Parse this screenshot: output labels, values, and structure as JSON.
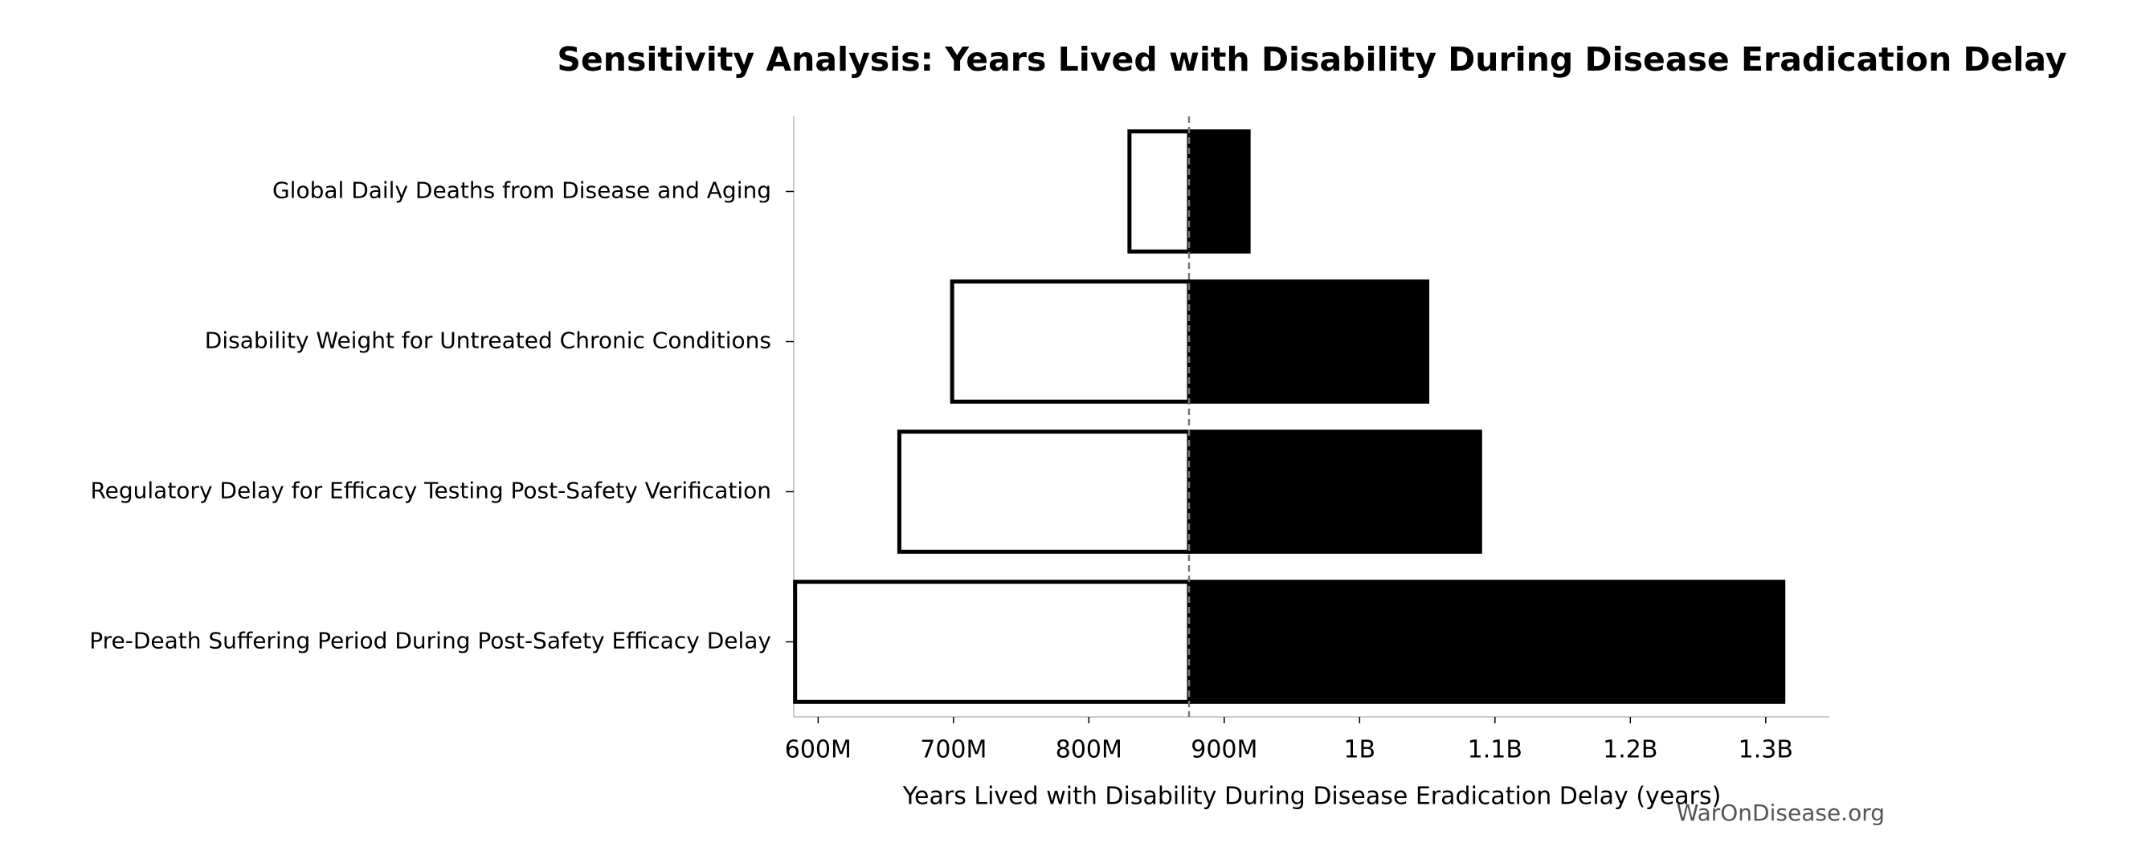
{
  "chart_data": {
    "type": "tornado",
    "title": "Sensitivity Analysis: Years Lived with Disability During Disease Eradication Delay",
    "x_label": "Years Lived with Disability During Disease Eradication Delay (years)",
    "watermark": "WarOnDisease.org",
    "categories": [
      "Global Daily Deaths from Disease and Aging",
      "Disability Weight for Untreated Chronic Conditions",
      "Regulatory Delay for Efficacy Testing Post-Safety Verification",
      "Pre-Death Suffering Period During Post-Safety Efficacy Delay"
    ],
    "baseline": 874000000,
    "series": [
      {
        "color": "#ffffff",
        "values": [
          830000000,
          699000000,
          660000000,
          583000000
        ]
      },
      {
        "color": "#000000",
        "values": [
          918000000,
          1050000000,
          1089000000,
          1313000000
        ]
      }
    ],
    "edgecolor": "#000000",
    "xlim": [
      582000000,
      1347000000
    ],
    "xticks": [
      {
        "value": 600000000,
        "label": "600M"
      },
      {
        "value": 700000000,
        "label": "700M"
      },
      {
        "value": 800000000,
        "label": "800M"
      },
      {
        "value": 900000000,
        "label": "900M"
      },
      {
        "value": 1000000000,
        "label": "1B"
      },
      {
        "value": 1100000000,
        "label": "1.1B"
      },
      {
        "value": 1200000000,
        "label": "1.2B"
      },
      {
        "value": 1300000000,
        "label": "1.3B"
      }
    ]
  }
}
